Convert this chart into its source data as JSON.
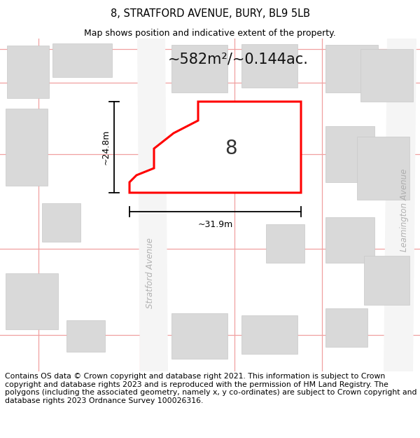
{
  "title": "8, STRATFORD AVENUE, BURY, BL9 5LB",
  "subtitle": "Map shows position and indicative extent of the property.",
  "area_text": "~582m²/~0.144ac.",
  "property_number": "8",
  "dim_height": "~24.8m",
  "dim_width": "~31.9m",
  "street_name_left": "Stratford Avenue",
  "street_name_right": "Leamington Avenue",
  "footer": "Contains OS data © Crown copyright and database right 2021. This information is subject to Crown copyright and database rights 2023 and is reproduced with the permission of HM Land Registry. The polygons (including the associated geometry, namely x, y co-ordinates) are subject to Crown copyright and database rights 2023 Ordnance Survey 100026316.",
  "map_bg": "#f9f9f9",
  "building_fill": "#d9d9d9",
  "building_edge": "#c8c8c8",
  "property_fill": "#ffffff",
  "property_edge": "#ff0000",
  "road_line_color": "#f0a0a0",
  "title_fontsize": 10.5,
  "subtitle_fontsize": 9,
  "area_fontsize": 15,
  "label_fontsize": 9,
  "footer_fontsize": 7.8,
  "street_fontsize": 8.5
}
